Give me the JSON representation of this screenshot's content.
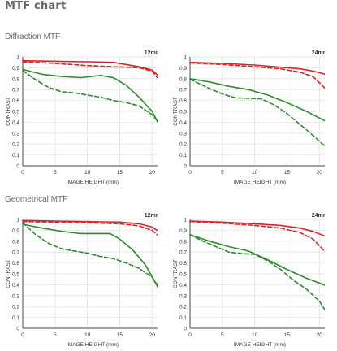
{
  "page": {
    "title": "MTF chart",
    "sections": [
      {
        "title": "Diffraction MTF"
      },
      {
        "title": "Geometrical MTF"
      }
    ]
  },
  "colors": {
    "red": "#d9252a",
    "green": "#2e8b2e",
    "axis": "#444444",
    "grid": "#e3e3e3"
  },
  "chart_data": [
    {
      "type": "line",
      "section": "Diffraction MTF",
      "focal_length": "12mm",
      "xlabel": "IMAGE HEIGHT (mm)",
      "ylabel": "CONTRAST",
      "xlim": [
        0,
        21.6
      ],
      "ylim": [
        0,
        1
      ],
      "xticks": [
        "0",
        "5",
        "10",
        "15",
        "20"
      ],
      "yticks": [
        "0",
        "0.1",
        "0.2",
        "0.3",
        "0.4",
        "0.5",
        "0.6",
        "0.7",
        "0.8",
        "0.9",
        "1"
      ],
      "grid": true,
      "series": [
        {
          "color": "red",
          "dash": false,
          "x": [
            0,
            5,
            10,
            14,
            16,
            18,
            20,
            21.6
          ],
          "y": [
            0.965,
            0.96,
            0.955,
            0.95,
            0.93,
            0.91,
            0.88,
            0.79
          ]
        },
        {
          "color": "red",
          "dash": true,
          "x": [
            0,
            5,
            10,
            14,
            16,
            18,
            20,
            21.6
          ],
          "y": [
            0.955,
            0.94,
            0.92,
            0.91,
            0.905,
            0.9,
            0.87,
            0.75
          ]
        },
        {
          "color": "green",
          "dash": false,
          "x": [
            0,
            3,
            6,
            9,
            12,
            14,
            16,
            18,
            20,
            21.6
          ],
          "y": [
            0.885,
            0.84,
            0.82,
            0.81,
            0.83,
            0.81,
            0.74,
            0.63,
            0.5,
            0.32
          ]
        },
        {
          "color": "green",
          "dash": true,
          "x": [
            0,
            2,
            4,
            6,
            8,
            10,
            12,
            14,
            16,
            18,
            20,
            21.6
          ],
          "y": [
            0.875,
            0.79,
            0.72,
            0.68,
            0.67,
            0.65,
            0.63,
            0.6,
            0.58,
            0.55,
            0.47,
            0.35
          ]
        }
      ]
    },
    {
      "type": "line",
      "section": "Diffraction MTF",
      "focal_length": "24mm",
      "xlabel": "IMAGE HEIGHT (mm)",
      "ylabel": "CONTRAST",
      "xlim": [
        0,
        21.6
      ],
      "ylim": [
        0,
        1
      ],
      "xticks": [
        "0",
        "5",
        "10",
        "15",
        "20"
      ],
      "yticks": [
        "0",
        "0.1",
        "0.2",
        "0.3",
        "0.4",
        "0.5",
        "0.6",
        "0.7",
        "0.8",
        "0.9",
        "1"
      ],
      "grid": true,
      "series": [
        {
          "color": "red",
          "dash": false,
          "x": [
            0,
            5,
            10,
            14,
            17,
            19,
            21.6
          ],
          "y": [
            0.95,
            0.94,
            0.925,
            0.905,
            0.89,
            0.87,
            0.83
          ]
        },
        {
          "color": "red",
          "dash": true,
          "x": [
            0,
            5,
            10,
            14,
            17,
            19,
            21.6
          ],
          "y": [
            0.945,
            0.93,
            0.91,
            0.89,
            0.86,
            0.82,
            0.67
          ]
        },
        {
          "color": "green",
          "dash": false,
          "x": [
            0,
            3,
            6,
            9,
            12,
            15,
            18,
            21.6
          ],
          "y": [
            0.8,
            0.77,
            0.73,
            0.7,
            0.65,
            0.58,
            0.5,
            0.39
          ]
        },
        {
          "color": "green",
          "dash": true,
          "x": [
            0,
            3,
            5,
            7,
            9,
            11,
            13,
            15,
            17,
            19,
            21.6
          ],
          "y": [
            0.795,
            0.71,
            0.66,
            0.625,
            0.62,
            0.615,
            0.56,
            0.48,
            0.38,
            0.28,
            0.14
          ]
        }
      ]
    },
    {
      "type": "line",
      "section": "Geometrical MTF",
      "focal_length": "12mm",
      "xlabel": "IMAGE HEIGHT (mm)",
      "ylabel": "CONTRAST",
      "xlim": [
        0,
        21.6
      ],
      "ylim": [
        0,
        1
      ],
      "xticks": [
        "0",
        "5",
        "10",
        "15",
        "20"
      ],
      "yticks": [
        "0",
        "0.1",
        "0.2",
        "0.3",
        "0.4",
        "0.5",
        "0.6",
        "0.7",
        "0.8",
        "0.9",
        "1"
      ],
      "grid": true,
      "series": [
        {
          "color": "red",
          "dash": false,
          "x": [
            0,
            5,
            10,
            15,
            18,
            20,
            21.6
          ],
          "y": [
            0.99,
            0.985,
            0.98,
            0.975,
            0.96,
            0.93,
            0.87
          ]
        },
        {
          "color": "red",
          "dash": true,
          "x": [
            0,
            5,
            10,
            15,
            18,
            20,
            21.6
          ],
          "y": [
            0.98,
            0.975,
            0.97,
            0.96,
            0.94,
            0.9,
            0.82
          ]
        },
        {
          "color": "green",
          "dash": false,
          "x": [
            0,
            3,
            6,
            9,
            12,
            13.5,
            15,
            17,
            19,
            20.5,
            21.6
          ],
          "y": [
            0.955,
            0.92,
            0.89,
            0.87,
            0.87,
            0.87,
            0.82,
            0.72,
            0.58,
            0.42,
            0.3
          ]
        },
        {
          "color": "green",
          "dash": true,
          "x": [
            0,
            2,
            4,
            6,
            8,
            10,
            12,
            14,
            16,
            18,
            20,
            21.6
          ],
          "y": [
            0.97,
            0.86,
            0.78,
            0.73,
            0.71,
            0.69,
            0.66,
            0.64,
            0.6,
            0.55,
            0.47,
            0.33
          ]
        }
      ]
    },
    {
      "type": "line",
      "section": "Geometrical MTF",
      "focal_length": "24mm",
      "xlabel": "IMAGE HEIGHT (mm)",
      "ylabel": "CONTRAST",
      "xlim": [
        0,
        21.6
      ],
      "ylim": [
        0,
        1
      ],
      "xticks": [
        "0",
        "5",
        "10",
        "15",
        "20"
      ],
      "yticks": [
        "0",
        "0.1",
        "0.2",
        "0.3",
        "0.4",
        "0.5",
        "0.6",
        "0.7",
        "0.8",
        "0.9",
        "1"
      ],
      "grid": true,
      "series": [
        {
          "color": "red",
          "dash": false,
          "x": [
            0,
            5,
            10,
            14,
            17,
            19,
            21.6
          ],
          "y": [
            0.985,
            0.975,
            0.96,
            0.945,
            0.92,
            0.89,
            0.83
          ]
        },
        {
          "color": "red",
          "dash": true,
          "x": [
            0,
            5,
            10,
            14,
            17,
            19,
            21.6
          ],
          "y": [
            0.98,
            0.965,
            0.945,
            0.92,
            0.88,
            0.82,
            0.66
          ]
        },
        {
          "color": "green",
          "dash": false,
          "x": [
            0,
            3,
            6,
            9,
            12,
            15,
            18,
            21.6
          ],
          "y": [
            0.86,
            0.8,
            0.75,
            0.71,
            0.63,
            0.54,
            0.46,
            0.38
          ]
        },
        {
          "color": "green",
          "dash": true,
          "x": [
            0,
            2,
            4,
            6,
            8,
            10,
            12,
            14,
            16,
            18,
            20,
            21.6
          ],
          "y": [
            0.86,
            0.8,
            0.75,
            0.7,
            0.685,
            0.68,
            0.62,
            0.54,
            0.44,
            0.36,
            0.25,
            0.1
          ]
        }
      ]
    }
  ]
}
